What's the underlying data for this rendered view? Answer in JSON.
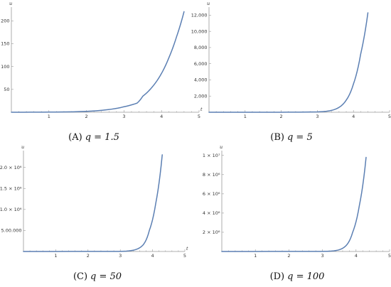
{
  "chart_data": [
    {
      "type": "line",
      "caption_tag": "(A)",
      "caption_eq": "q = 1.5",
      "xlabel": "t",
      "ylabel": "u",
      "xlim": [
        0,
        5
      ],
      "ylim": [
        0,
        230
      ],
      "x_ticks": [
        "1",
        "2",
        "3",
        "4",
        "5"
      ],
      "y_ticks": [
        {
          "value": 50,
          "label": "50"
        },
        {
          "value": 100,
          "label": "100"
        },
        {
          "value": 150,
          "label": "150"
        },
        {
          "value": 200,
          "label": "200"
        }
      ],
      "series": [
        {
          "color": "#5b7fb3",
          "x": [
            0,
            1,
            2,
            2.5,
            3,
            3.35,
            3.5,
            3.75,
            4,
            4.2,
            4.4,
            4.6
          ],
          "y": [
            0,
            0.3,
            2,
            5,
            12,
            20,
            35,
            55,
            85,
            120,
            165,
            220
          ]
        }
      ]
    },
    {
      "type": "line",
      "caption_tag": "(B)",
      "caption_eq": "q = 5",
      "xlabel": "t",
      "ylabel": "u",
      "xlim": [
        0,
        5
      ],
      "ylim": [
        0,
        13000
      ],
      "x_ticks": [
        "1",
        "2",
        "3",
        "4",
        "5"
      ],
      "y_ticks": [
        {
          "value": 2000,
          "label": "2,000"
        },
        {
          "value": 4000,
          "label": "4,000"
        },
        {
          "value": 6000,
          "label": "6,000"
        },
        {
          "value": 8000,
          "label": "8,000"
        },
        {
          "value": 10000,
          "label": "10,000"
        },
        {
          "value": 12000,
          "label": "12,000"
        }
      ],
      "series": [
        {
          "color": "#5b7fb3",
          "x": [
            0,
            2,
            3,
            3.3,
            3.6,
            3.8,
            4,
            4.2,
            4.4
          ],
          "y": [
            0,
            5,
            40,
            150,
            600,
            1500,
            3500,
            7200,
            12300
          ]
        }
      ]
    },
    {
      "type": "line",
      "caption_tag": "(C)",
      "caption_eq": "q = 50",
      "xlabel": "t",
      "ylabel": "u",
      "xlim": [
        0,
        5
      ],
      "ylim": [
        0,
        2400000
      ],
      "x_ticks": [
        "1",
        "2",
        "3",
        "4",
        "5"
      ],
      "y_ticks": [
        {
          "value": 500000,
          "label": "5.00.000"
        },
        {
          "value": 1000000,
          "label": "1.0 × 10⁶"
        },
        {
          "value": 1500000,
          "label": "1.5 × 10⁶"
        },
        {
          "value": 2000000,
          "label": "2.0 × 10⁶"
        }
      ],
      "series": [
        {
          "color": "#5b7fb3",
          "x": [
            0,
            3,
            3.4,
            3.7,
            3.9,
            4.1,
            4.3
          ],
          "y": [
            0,
            3000,
            30000,
            150000,
            500000,
            1150000,
            2300000
          ]
        }
      ]
    },
    {
      "type": "line",
      "caption_tag": "(D)",
      "caption_eq": "q = 100",
      "xlabel": "t",
      "ylabel": "u",
      "xlim": [
        0,
        5
      ],
      "ylim": [
        0,
        10500000
      ],
      "x_ticks": [
        "1",
        "2",
        "3",
        "4",
        "5"
      ],
      "y_ticks": [
        {
          "value": 2000000,
          "label": "2 × 10⁶"
        },
        {
          "value": 4000000,
          "label": "4 × 10⁶"
        },
        {
          "value": 6000000,
          "label": "6 × 10⁶"
        },
        {
          "value": 8000000,
          "label": "8 × 10⁶"
        },
        {
          "value": 10000000,
          "label": "1 × 10⁷"
        }
      ],
      "series": [
        {
          "color": "#5b7fb3",
          "x": [
            0,
            3,
            3.4,
            3.7,
            3.9,
            4.1,
            4.3
          ],
          "y": [
            0,
            10000,
            100000,
            600000,
            2000000,
            4800000,
            9800000
          ]
        }
      ]
    }
  ]
}
